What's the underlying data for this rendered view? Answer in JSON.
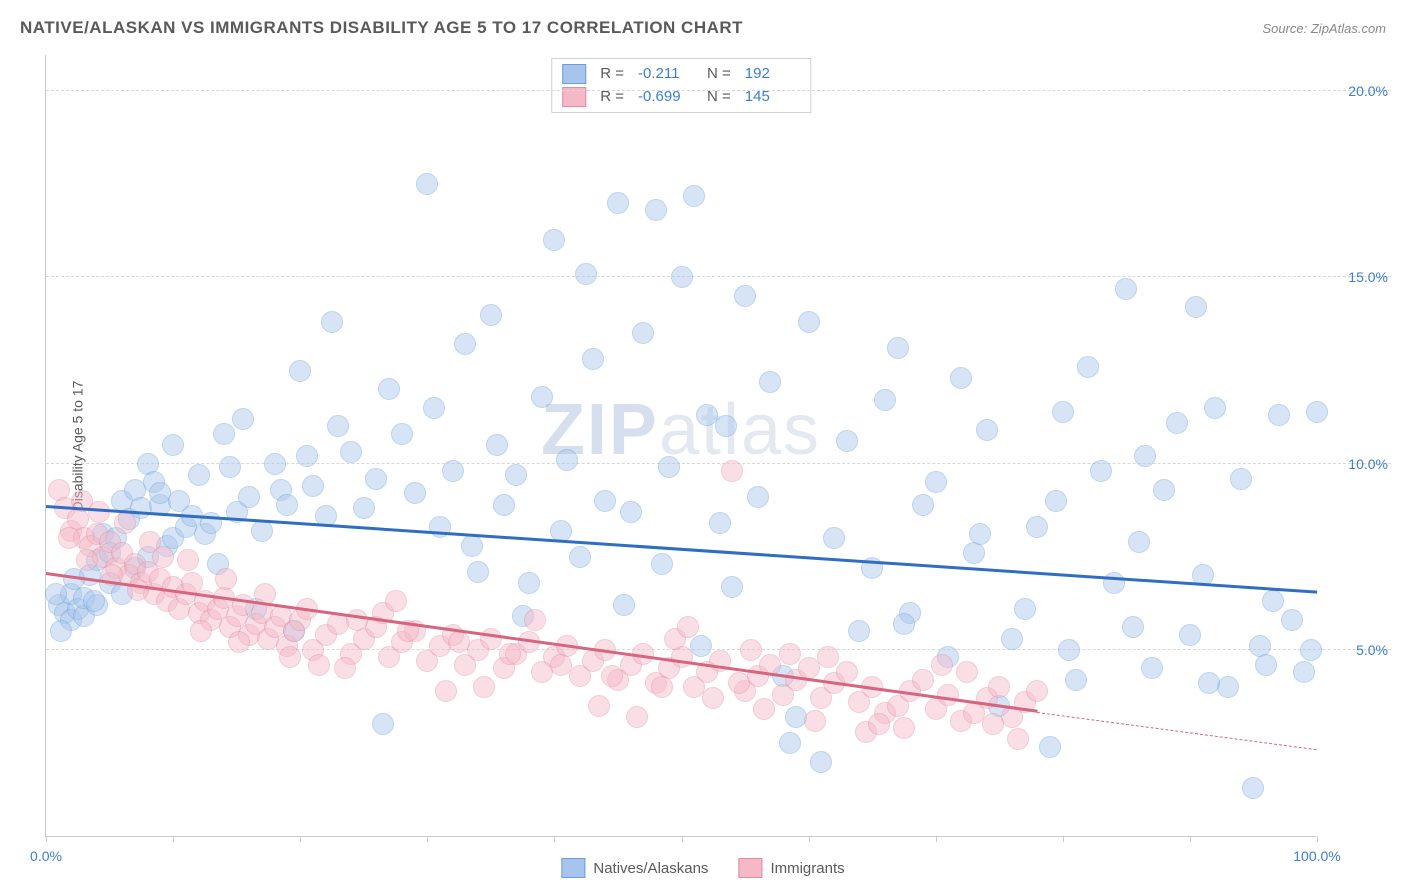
{
  "header": {
    "title": "NATIVE/ALASKAN VS IMMIGRANTS DISABILITY AGE 5 TO 17 CORRELATION CHART",
    "source": "Source: ZipAtlas.com"
  },
  "ylabel": "Disability Age 5 to 17",
  "watermark": {
    "bold": "ZIP",
    "light": "atlas"
  },
  "chart": {
    "type": "scatter",
    "xlim": [
      0,
      100
    ],
    "ylim": [
      0,
      21
    ],
    "xticks": [
      0,
      10,
      20,
      30,
      40,
      50,
      60,
      70,
      80,
      90,
      100
    ],
    "xtick_labels": {
      "0": "0.0%",
      "100": "100.0%"
    },
    "yticks": [
      5,
      10,
      15,
      20
    ],
    "ytick_labels": {
      "5": "5.0%",
      "10": "10.0%",
      "15": "15.0%",
      "20": "20.0%"
    },
    "grid_color": "#d8d8d8",
    "background_color": "#ffffff",
    "axis_color": "#cccccc",
    "tick_label_color": "#3b7dd8",
    "marker_radius": 10,
    "marker_opacity": 0.45,
    "series": [
      {
        "name": "Natives/Alaskans",
        "color_fill": "#a7c5ec",
        "color_stroke": "#6a9fd8",
        "trend_color": "#2f6ec4",
        "R": "-0.211",
        "N": "192",
        "trend": {
          "x0": 0,
          "y0": 8.8,
          "x1": 100,
          "y1": 6.5,
          "dash_after_x": 100
        },
        "points": [
          [
            1,
            6.2
          ],
          [
            1.5,
            6.0
          ],
          [
            2,
            5.8
          ],
          [
            2,
            6.5
          ],
          [
            2.5,
            6.1
          ],
          [
            3,
            5.9
          ],
          [
            3,
            6.4
          ],
          [
            3.5,
            7.0
          ],
          [
            4,
            6.2
          ],
          [
            4,
            7.4
          ],
          [
            4.5,
            8.1
          ],
          [
            5,
            6.8
          ],
          [
            5,
            7.6
          ],
          [
            5.5,
            8.0
          ],
          [
            6,
            6.5
          ],
          [
            6,
            9.0
          ],
          [
            6.5,
            8.5
          ],
          [
            7,
            7.2
          ],
          [
            7,
            9.3
          ],
          [
            7.5,
            8.8
          ],
          [
            8,
            10.0
          ],
          [
            8,
            7.5
          ],
          [
            8.5,
            9.5
          ],
          [
            9,
            8.9
          ],
          [
            9,
            9.2
          ],
          [
            9.5,
            7.8
          ],
          [
            10,
            8.0
          ],
          [
            10,
            10.5
          ],
          [
            10.5,
            9.0
          ],
          [
            11,
            8.3
          ],
          [
            11.5,
            8.6
          ],
          [
            12,
            9.7
          ],
          [
            12.5,
            8.1
          ],
          [
            13,
            8.4
          ],
          [
            14,
            10.8
          ],
          [
            14.5,
            9.9
          ],
          [
            15,
            8.7
          ],
          [
            15.5,
            11.2
          ],
          [
            16,
            9.1
          ],
          [
            17,
            8.2
          ],
          [
            18,
            10.0
          ],
          [
            18.5,
            9.3
          ],
          [
            19,
            8.9
          ],
          [
            20,
            12.5
          ],
          [
            20.5,
            10.2
          ],
          [
            21,
            9.4
          ],
          [
            22,
            8.6
          ],
          [
            23,
            11.0
          ],
          [
            24,
            10.3
          ],
          [
            25,
            8.8
          ],
          [
            26,
            9.6
          ],
          [
            27,
            12.0
          ],
          [
            28,
            10.8
          ],
          [
            29,
            9.2
          ],
          [
            30,
            17.5
          ],
          [
            30.5,
            11.5
          ],
          [
            31,
            8.3
          ],
          [
            32,
            9.8
          ],
          [
            33,
            13.2
          ],
          [
            34,
            7.1
          ],
          [
            35,
            14.0
          ],
          [
            35.5,
            10.5
          ],
          [
            36,
            8.9
          ],
          [
            37,
            9.7
          ],
          [
            38,
            6.8
          ],
          [
            39,
            11.8
          ],
          [
            40,
            16.0
          ],
          [
            40.5,
            8.2
          ],
          [
            41,
            10.1
          ],
          [
            42,
            7.5
          ],
          [
            43,
            12.8
          ],
          [
            44,
            9.0
          ],
          [
            45,
            17.0
          ],
          [
            45.5,
            6.2
          ],
          [
            46,
            8.7
          ],
          [
            47,
            13.5
          ],
          [
            48,
            16.8
          ],
          [
            48.5,
            7.3
          ],
          [
            49,
            9.9
          ],
          [
            50,
            15.0
          ],
          [
            51,
            17.2
          ],
          [
            51.5,
            5.1
          ],
          [
            52,
            11.3
          ],
          [
            53,
            8.4
          ],
          [
            54,
            6.7
          ],
          [
            55,
            14.5
          ],
          [
            56,
            9.1
          ],
          [
            57,
            12.2
          ],
          [
            58,
            4.3
          ],
          [
            59,
            3.2
          ],
          [
            60,
            13.8
          ],
          [
            61,
            2.0
          ],
          [
            62,
            8.0
          ],
          [
            63,
            10.6
          ],
          [
            64,
            5.5
          ],
          [
            65,
            7.2
          ],
          [
            66,
            11.7
          ],
          [
            67,
            13.1
          ],
          [
            68,
            6.0
          ],
          [
            69,
            8.9
          ],
          [
            70,
            9.5
          ],
          [
            71,
            4.8
          ],
          [
            72,
            12.3
          ],
          [
            73,
            7.6
          ],
          [
            74,
            10.9
          ],
          [
            75,
            3.5
          ],
          [
            76,
            5.3
          ],
          [
            77,
            6.1
          ],
          [
            78,
            8.3
          ],
          [
            79,
            2.4
          ],
          [
            80,
            11.4
          ],
          [
            80.5,
            5.0
          ],
          [
            81,
            4.2
          ],
          [
            82,
            12.6
          ],
          [
            83,
            9.8
          ],
          [
            84,
            6.8
          ],
          [
            85,
            14.7
          ],
          [
            85.5,
            5.6
          ],
          [
            86,
            7.9
          ],
          [
            87,
            4.5
          ],
          [
            88,
            9.3
          ],
          [
            89,
            11.1
          ],
          [
            90,
            5.4
          ],
          [
            90.5,
            14.2
          ],
          [
            91,
            7.0
          ],
          [
            92,
            11.5
          ],
          [
            93,
            4.0
          ],
          [
            94,
            9.6
          ],
          [
            95,
            1.3
          ],
          [
            95.5,
            5.1
          ],
          [
            96,
            4.6
          ],
          [
            97,
            11.3
          ],
          [
            98,
            5.8
          ],
          [
            99,
            4.4
          ],
          [
            99.5,
            5.0
          ],
          [
            100,
            11.4
          ],
          [
            22.5,
            13.8
          ],
          [
            26.5,
            3.0
          ],
          [
            37.5,
            5.9
          ],
          [
            42.5,
            15.1
          ],
          [
            53.5,
            11.0
          ],
          [
            58.5,
            2.5
          ],
          [
            67.5,
            5.7
          ],
          [
            73.5,
            8.1
          ],
          [
            79.5,
            9.0
          ],
          [
            86.5,
            10.2
          ],
          [
            91.5,
            4.1
          ],
          [
            96.5,
            6.3
          ],
          [
            13.5,
            7.3
          ],
          [
            16.5,
            6.1
          ],
          [
            19.5,
            5.5
          ],
          [
            33.5,
            7.8
          ],
          [
            2.2,
            6.9
          ],
          [
            3.8,
            6.3
          ],
          [
            1.2,
            5.5
          ],
          [
            0.8,
            6.5
          ]
        ]
      },
      {
        "name": "Immigrants",
        "color_fill": "#f4b8c6",
        "color_stroke": "#e58ba2",
        "trend_color": "#d8657f",
        "R": "-0.699",
        "N": "145",
        "trend": {
          "x0": 0,
          "y0": 7.0,
          "x1": 78,
          "y1": 3.3,
          "dash_after_x": 78,
          "dash_x1": 100,
          "dash_y1": 2.3
        },
        "points": [
          [
            1,
            9.3
          ],
          [
            1.5,
            8.8
          ],
          [
            2,
            8.2
          ],
          [
            2.5,
            8.5
          ],
          [
            3,
            8.0
          ],
          [
            3.5,
            7.8
          ],
          [
            4,
            8.1
          ],
          [
            4.5,
            7.5
          ],
          [
            5,
            7.9
          ],
          [
            5.5,
            7.2
          ],
          [
            6,
            7.6
          ],
          [
            6.5,
            7.0
          ],
          [
            7,
            7.3
          ],
          [
            7.5,
            6.8
          ],
          [
            8,
            7.1
          ],
          [
            8.5,
            6.5
          ],
          [
            9,
            6.9
          ],
          [
            9.5,
            6.3
          ],
          [
            10,
            6.7
          ],
          [
            10.5,
            6.1
          ],
          [
            11,
            6.5
          ],
          [
            11.5,
            6.8
          ],
          [
            12,
            6.0
          ],
          [
            12.5,
            6.3
          ],
          [
            13,
            5.8
          ],
          [
            13.5,
            6.1
          ],
          [
            14,
            6.4
          ],
          [
            14.5,
            5.6
          ],
          [
            15,
            5.9
          ],
          [
            15.5,
            6.2
          ],
          [
            16,
            5.4
          ],
          [
            16.5,
            5.7
          ],
          [
            17,
            6.0
          ],
          [
            17.5,
            5.3
          ],
          [
            18,
            5.6
          ],
          [
            18.5,
            5.9
          ],
          [
            19,
            5.1
          ],
          [
            19.5,
            5.5
          ],
          [
            20,
            5.8
          ],
          [
            21,
            5.0
          ],
          [
            22,
            5.4
          ],
          [
            23,
            5.7
          ],
          [
            24,
            4.9
          ],
          [
            25,
            5.3
          ],
          [
            26,
            5.6
          ],
          [
            27,
            4.8
          ],
          [
            28,
            5.2
          ],
          [
            29,
            5.5
          ],
          [
            30,
            4.7
          ],
          [
            31,
            5.1
          ],
          [
            32,
            5.4
          ],
          [
            33,
            4.6
          ],
          [
            34,
            5.0
          ],
          [
            35,
            5.3
          ],
          [
            36,
            4.5
          ],
          [
            37,
            4.9
          ],
          [
            38,
            5.2
          ],
          [
            39,
            4.4
          ],
          [
            40,
            4.8
          ],
          [
            41,
            5.1
          ],
          [
            42,
            4.3
          ],
          [
            43,
            4.7
          ],
          [
            44,
            5.0
          ],
          [
            45,
            4.2
          ],
          [
            46,
            4.6
          ],
          [
            47,
            4.9
          ],
          [
            48,
            4.1
          ],
          [
            49,
            4.5
          ],
          [
            50,
            4.8
          ],
          [
            51,
            4.0
          ],
          [
            52,
            4.4
          ],
          [
            53,
            4.7
          ],
          [
            54,
            9.8
          ],
          [
            55,
            3.9
          ],
          [
            56,
            4.3
          ],
          [
            57,
            4.6
          ],
          [
            58,
            3.8
          ],
          [
            59,
            4.2
          ],
          [
            60,
            4.5
          ],
          [
            61,
            3.7
          ],
          [
            62,
            4.1
          ],
          [
            63,
            4.4
          ],
          [
            64,
            3.6
          ],
          [
            65,
            4.0
          ],
          [
            66,
            3.3
          ],
          [
            67,
            3.5
          ],
          [
            68,
            3.9
          ],
          [
            69,
            4.2
          ],
          [
            70,
            3.4
          ],
          [
            71,
            3.8
          ],
          [
            72,
            3.1
          ],
          [
            73,
            3.3
          ],
          [
            74,
            3.7
          ],
          [
            75,
            4.0
          ],
          [
            76,
            3.2
          ],
          [
            77,
            3.6
          ],
          [
            78,
            3.9
          ],
          [
            2.8,
            9.0
          ],
          [
            4.2,
            8.7
          ],
          [
            6.2,
            8.4
          ],
          [
            8.2,
            7.9
          ],
          [
            11.2,
            7.4
          ],
          [
            14.2,
            6.9
          ],
          [
            17.2,
            6.5
          ],
          [
            20.5,
            6.1
          ],
          [
            24.5,
            5.8
          ],
          [
            28.5,
            5.5
          ],
          [
            32.5,
            5.2
          ],
          [
            36.5,
            4.9
          ],
          [
            40.5,
            4.6
          ],
          [
            44.5,
            4.3
          ],
          [
            48.5,
            4.0
          ],
          [
            52.5,
            3.7
          ],
          [
            56.5,
            3.4
          ],
          [
            60.5,
            3.1
          ],
          [
            64.5,
            2.8
          ],
          [
            21.5,
            4.6
          ],
          [
            26.5,
            6.0
          ],
          [
            31.5,
            3.9
          ],
          [
            38.5,
            5.8
          ],
          [
            43.5,
            3.5
          ],
          [
            49.5,
            5.3
          ],
          [
            55.5,
            5.0
          ],
          [
            61.5,
            4.8
          ],
          [
            5.2,
            7.0
          ],
          [
            9.2,
            7.5
          ],
          [
            1.8,
            8.0
          ],
          [
            3.2,
            7.4
          ],
          [
            15.2,
            5.2
          ],
          [
            19.2,
            4.8
          ],
          [
            23.5,
            4.5
          ],
          [
            7.2,
            6.6
          ],
          [
            12.2,
            5.5
          ],
          [
            27.5,
            6.3
          ],
          [
            54.5,
            4.1
          ],
          [
            67.5,
            2.9
          ],
          [
            72.5,
            4.4
          ],
          [
            76.5,
            2.6
          ],
          [
            70.5,
            4.6
          ],
          [
            65.5,
            3.0
          ],
          [
            74.5,
            3.0
          ],
          [
            58.5,
            4.9
          ],
          [
            46.5,
            3.2
          ],
          [
            50.5,
            5.6
          ],
          [
            34.5,
            4.0
          ]
        ]
      }
    ]
  },
  "legend": {
    "items": [
      {
        "label": "Natives/Alaskans",
        "fill": "#a7c5ec",
        "stroke": "#6a9fd8"
      },
      {
        "label": "Immigrants",
        "fill": "#f4b8c6",
        "stroke": "#e58ba2"
      }
    ]
  }
}
